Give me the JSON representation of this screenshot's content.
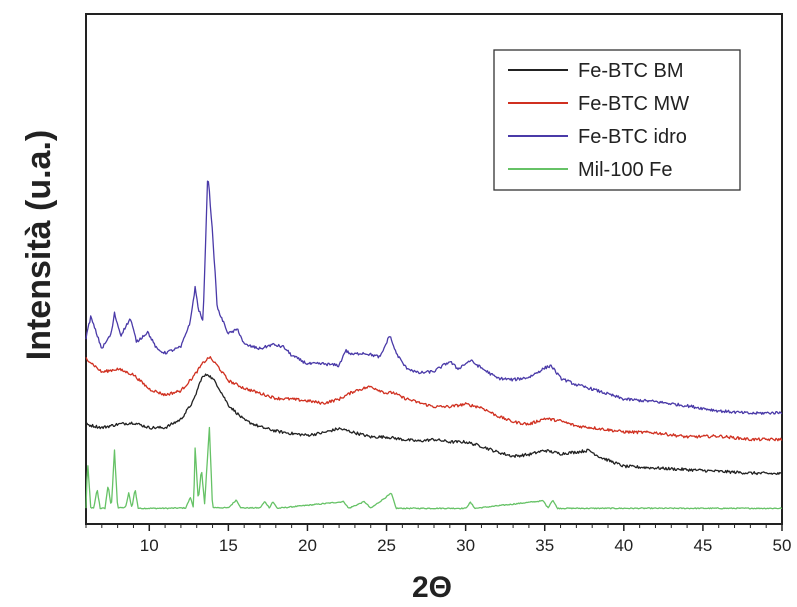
{
  "chart_data": {
    "type": "line",
    "xlabel": "2Θ",
    "ylabel": "Intensità (u.a.)",
    "xlim": [
      6,
      50
    ],
    "ylim": [
      0,
      100
    ],
    "x_ticks": [
      10,
      15,
      20,
      25,
      30,
      35,
      40,
      45,
      50
    ],
    "grid": false,
    "legend_position": "top-right",
    "series": [
      {
        "name": "Fe-BTC BM",
        "color": "#222222",
        "points": [
          [
            6,
            20.4
          ],
          [
            7,
            19.6
          ],
          [
            8,
            20.4
          ],
          [
            9,
            20.8
          ],
          [
            10,
            19.6
          ],
          [
            11,
            19.6
          ],
          [
            12,
            21.6
          ],
          [
            12.8,
            26
          ],
          [
            13.3,
            31.4
          ],
          [
            13.7,
            32.4
          ],
          [
            14.2,
            30.4
          ],
          [
            15,
            25
          ],
          [
            16,
            21.4
          ],
          [
            17,
            19.8
          ],
          [
            18,
            18.8
          ],
          [
            19,
            18.2
          ],
          [
            20,
            17.8
          ],
          [
            21,
            18.4
          ],
          [
            22,
            19.4
          ],
          [
            23,
            18.4
          ],
          [
            24,
            17.4
          ],
          [
            25,
            17.4
          ],
          [
            26,
            16.8
          ],
          [
            27,
            16.4
          ],
          [
            28,
            16.8
          ],
          [
            29,
            16.2
          ],
          [
            30,
            16.2
          ],
          [
            31,
            15.2
          ],
          [
            32,
            13.8
          ],
          [
            33,
            12.8
          ],
          [
            34,
            13.2
          ],
          [
            35,
            14.2
          ],
          [
            36,
            13.4
          ],
          [
            37,
            13.8
          ],
          [
            37.8,
            14.2
          ],
          [
            38.5,
            12.6
          ],
          [
            40,
            10.4
          ],
          [
            42,
            10
          ],
          [
            44,
            9.6
          ],
          [
            46,
            9.2
          ],
          [
            48,
            8.8
          ],
          [
            50,
            8.6
          ]
        ]
      },
      {
        "name": "Fe-BTC MW",
        "color": "#d03020",
        "points": [
          [
            6,
            36.2
          ],
          [
            7,
            32.8
          ],
          [
            8,
            33.6
          ],
          [
            9,
            32.2
          ],
          [
            10,
            28.8
          ],
          [
            11,
            27.4
          ],
          [
            12,
            28.4
          ],
          [
            12.8,
            31.8
          ],
          [
            13.4,
            35
          ],
          [
            13.8,
            36.4
          ],
          [
            14.3,
            34.4
          ],
          [
            15,
            30.8
          ],
          [
            16,
            29
          ],
          [
            17,
            27.8
          ],
          [
            18,
            26.6
          ],
          [
            19,
            26.4
          ],
          [
            20,
            26
          ],
          [
            21,
            25.4
          ],
          [
            22,
            26.4
          ],
          [
            23,
            28.4
          ],
          [
            24,
            29.4
          ],
          [
            25,
            27.8
          ],
          [
            25.4,
            28
          ],
          [
            26,
            26.8
          ],
          [
            27,
            25.6
          ],
          [
            28,
            24.6
          ],
          [
            29,
            24.6
          ],
          [
            30,
            25.2
          ],
          [
            31,
            24.4
          ],
          [
            32,
            22.4
          ],
          [
            33,
            21
          ],
          [
            34,
            20.4
          ],
          [
            35,
            21.8
          ],
          [
            36,
            21.2
          ],
          [
            37,
            20
          ],
          [
            38,
            19.6
          ],
          [
            40,
            18.6
          ],
          [
            42,
            18.4
          ],
          [
            44,
            17.4
          ],
          [
            46,
            17.6
          ],
          [
            48,
            16.8
          ],
          [
            50,
            16.8
          ]
        ]
      },
      {
        "name": "Fe-BTC idro",
        "color": "#4a3aa8",
        "points": [
          [
            6,
            41
          ],
          [
            6.3,
            46
          ],
          [
            7,
            38.4
          ],
          [
            7.6,
            42
          ],
          [
            7.8,
            46.8
          ],
          [
            8.2,
            41.6
          ],
          [
            8.8,
            45.6
          ],
          [
            9.2,
            40
          ],
          [
            9.9,
            42.4
          ],
          [
            10.5,
            38.2
          ],
          [
            11,
            37.4
          ],
          [
            12,
            38.8
          ],
          [
            12.6,
            45
          ],
          [
            12.9,
            53
          ],
          [
            13.1,
            48
          ],
          [
            13.4,
            44.8
          ],
          [
            13.7,
            80.4
          ],
          [
            14,
            66
          ],
          [
            14.3,
            48
          ],
          [
            15,
            42
          ],
          [
            15.6,
            43
          ],
          [
            16,
            39.4
          ],
          [
            17,
            38.4
          ],
          [
            17.8,
            39.4
          ],
          [
            18.5,
            38.8
          ],
          [
            19,
            36.8
          ],
          [
            20,
            34.8
          ],
          [
            21,
            34.8
          ],
          [
            22,
            34.4
          ],
          [
            22.4,
            38
          ],
          [
            22.8,
            37
          ],
          [
            23.5,
            37.4
          ],
          [
            24,
            37
          ],
          [
            24.6,
            36.4
          ],
          [
            25.2,
            41.6
          ],
          [
            25.6,
            37.4
          ],
          [
            26.2,
            34
          ],
          [
            27,
            32.6
          ],
          [
            28,
            33
          ],
          [
            29,
            35.4
          ],
          [
            29.5,
            33.6
          ],
          [
            30.3,
            35.6
          ],
          [
            31,
            33.8
          ],
          [
            32,
            31.4
          ],
          [
            33,
            31
          ],
          [
            34,
            31.6
          ],
          [
            35,
            33.8
          ],
          [
            35.4,
            34.4
          ],
          [
            36,
            31.4
          ],
          [
            37,
            29.8
          ],
          [
            38,
            28.8
          ],
          [
            39,
            27.6
          ],
          [
            40,
            26.4
          ],
          [
            42,
            25.8
          ],
          [
            44,
            24.8
          ],
          [
            46,
            23.6
          ],
          [
            48,
            23
          ],
          [
            50,
            23.2
          ]
        ]
      },
      {
        "name": "Mil-100 Fe",
        "color": "#66c266",
        "points": [
          [
            6,
            0.4
          ],
          [
            6.1,
            11.6
          ],
          [
            6.3,
            0.6
          ],
          [
            6.5,
            0.4
          ],
          [
            6.7,
            5
          ],
          [
            6.9,
            0.4
          ],
          [
            7.2,
            0.4
          ],
          [
            7.4,
            6
          ],
          [
            7.6,
            0.4
          ],
          [
            7.8,
            14.2
          ],
          [
            8.0,
            0.5
          ],
          [
            8.5,
            0.6
          ],
          [
            8.7,
            4
          ],
          [
            8.9,
            0.5
          ],
          [
            9.1,
            5
          ],
          [
            9.3,
            0.4
          ],
          [
            11,
            0.4
          ],
          [
            12.3,
            0.5
          ],
          [
            12.6,
            3
          ],
          [
            12.8,
            0.5
          ],
          [
            12.9,
            14.8
          ],
          [
            13.1,
            2
          ],
          [
            13.3,
            9.8
          ],
          [
            13.5,
            1.5
          ],
          [
            13.8,
            19.6
          ],
          [
            14,
            0.6
          ],
          [
            15,
            0.5
          ],
          [
            15.5,
            2.4
          ],
          [
            15.8,
            0.5
          ],
          [
            17,
            0.5
          ],
          [
            17.3,
            2
          ],
          [
            17.6,
            0.5
          ],
          [
            17.8,
            2
          ],
          [
            18.1,
            0.4
          ],
          [
            22.3,
            2
          ],
          [
            22.6,
            0.4
          ],
          [
            23.6,
            2
          ],
          [
            24,
            0.4
          ],
          [
            25.3,
            4
          ],
          [
            25.6,
            0.4
          ],
          [
            30,
            0.4
          ],
          [
            30.3,
            1.8
          ],
          [
            30.6,
            0.4
          ],
          [
            34.9,
            2.2
          ],
          [
            35.2,
            0.5
          ],
          [
            35.5,
            2.4
          ],
          [
            35.8,
            0.4
          ],
          [
            40,
            0.4
          ],
          [
            50,
            0.4
          ]
        ]
      }
    ]
  }
}
